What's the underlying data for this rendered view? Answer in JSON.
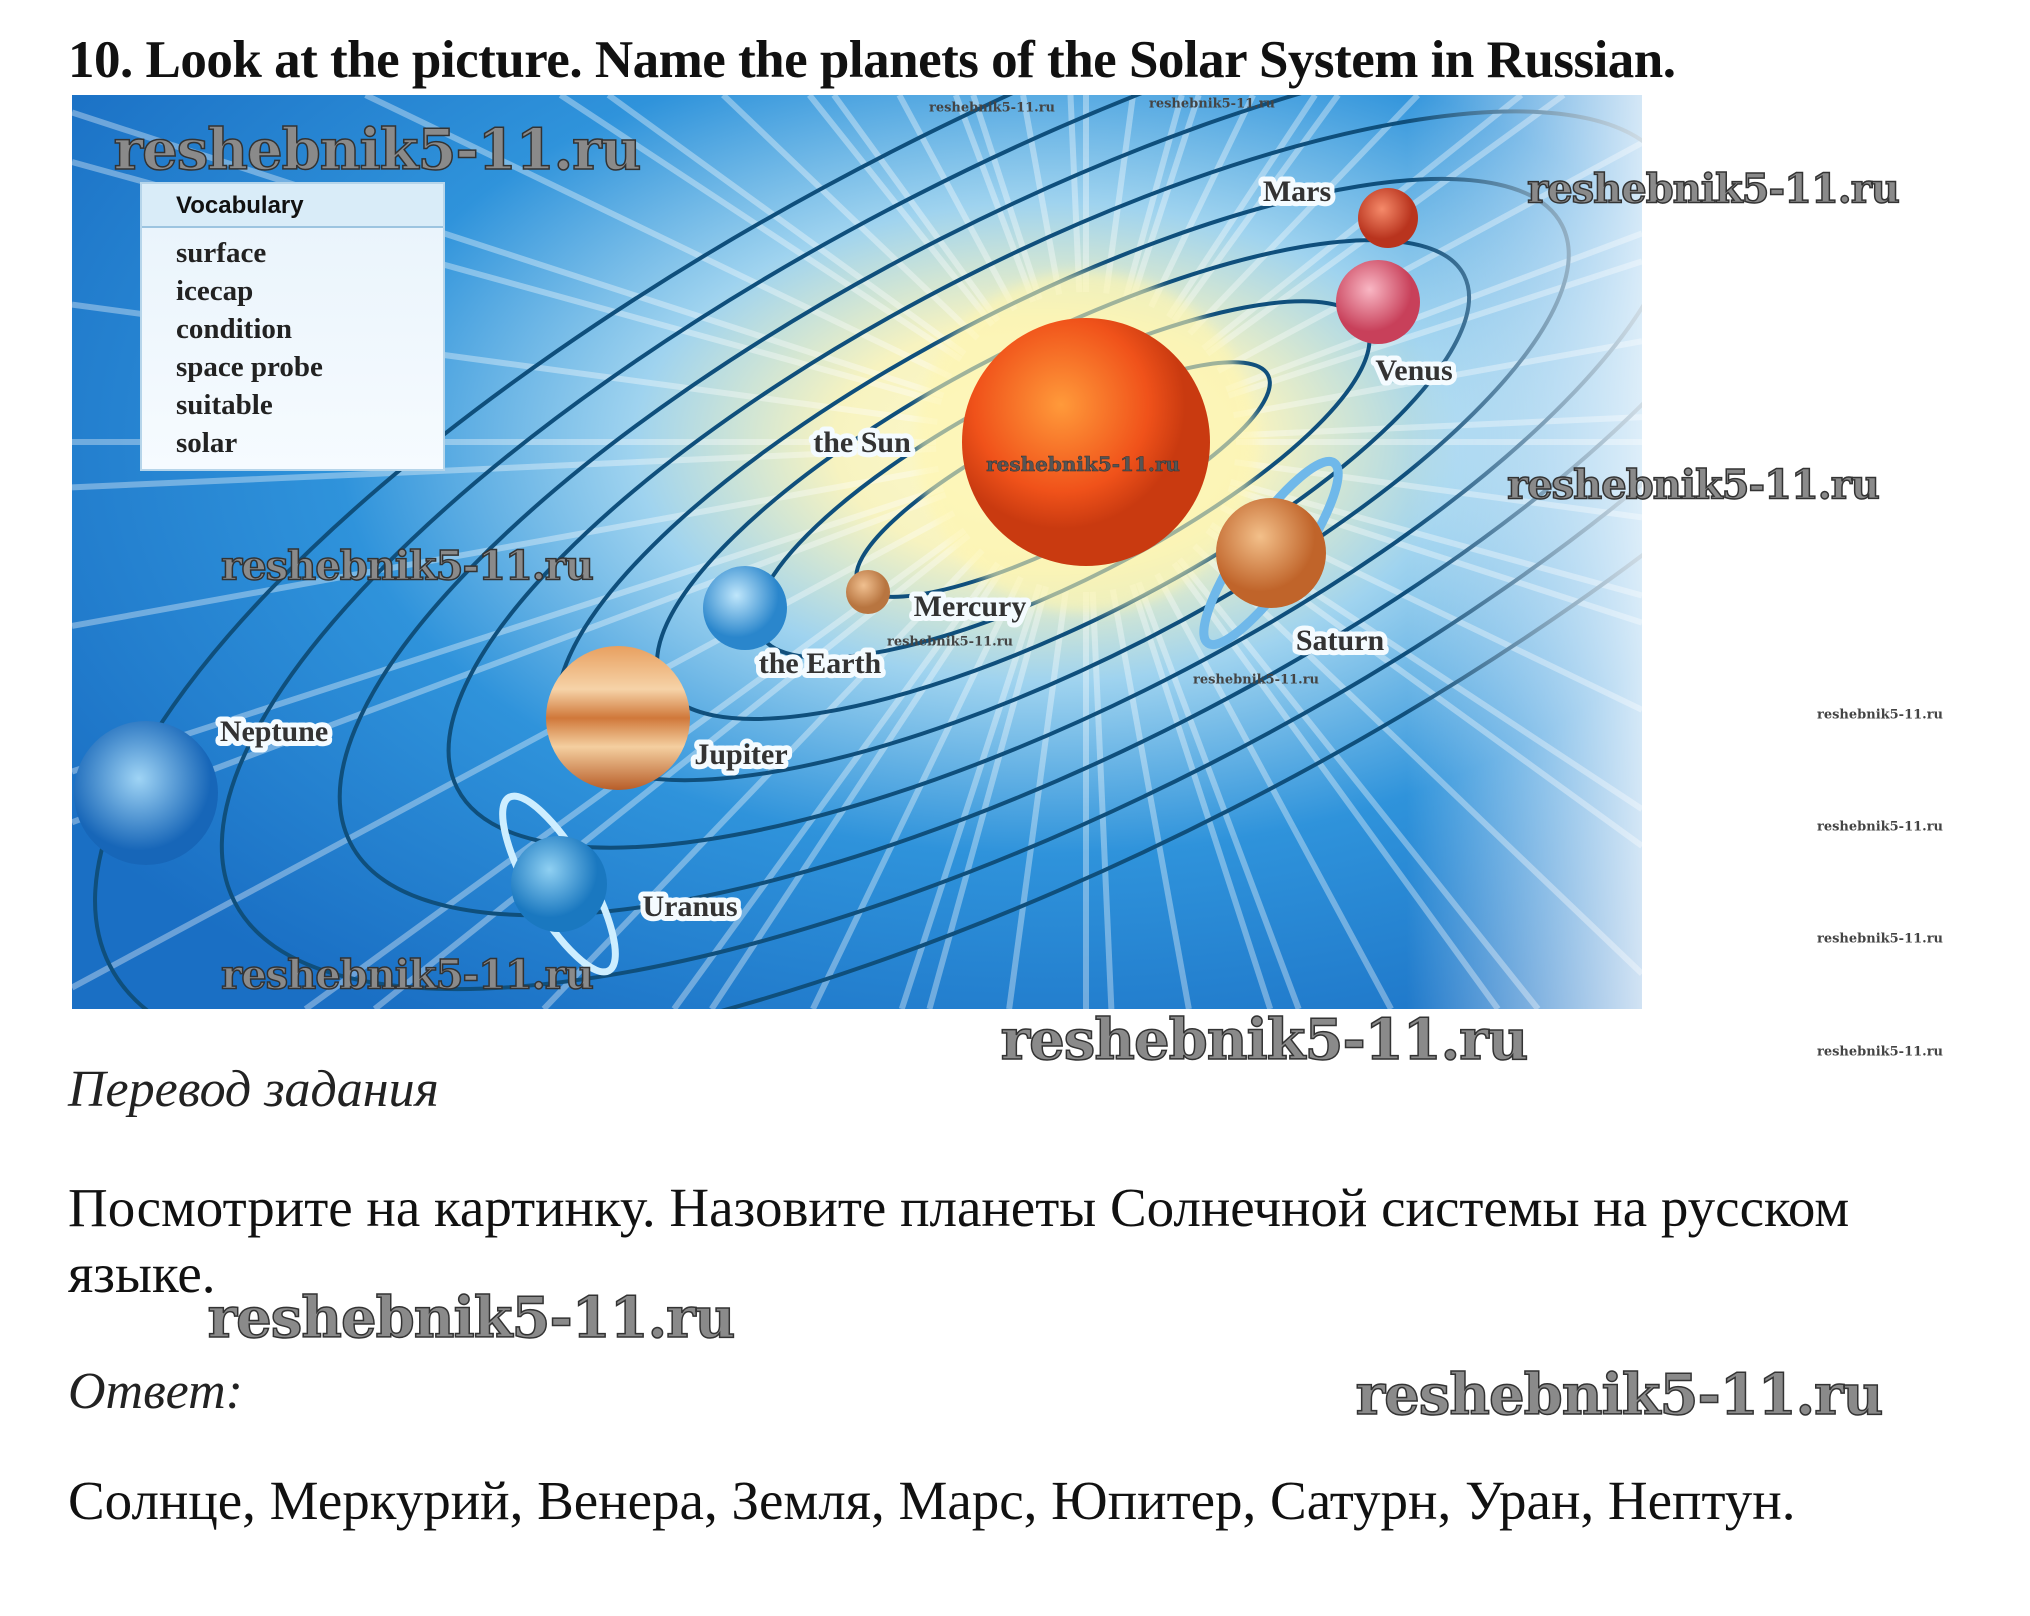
{
  "title": "10. Look at the picture. Name the planets of the Solar System in Russian.",
  "vocabulary": {
    "heading": "Vocabulary",
    "items": [
      "surface",
      "icecap",
      "condition",
      "space probe",
      "suitable",
      "solar"
    ]
  },
  "planet_labels": {
    "mars": "Mars",
    "venus": "Venus",
    "sun": "the Sun",
    "mercury": "Mercury",
    "saturn": "Saturn",
    "earth": "the Earth",
    "neptune": "Neptune",
    "jupiter": "Jupiter",
    "uranus": "Uranus"
  },
  "watermark": "reshebnik5-11.ru",
  "translation_heading": "Перевод задания",
  "translation_text": "Посмотрите на картинку. Назовите планеты Солнечной системы на русском языке.",
  "answer_heading": "Ответ:",
  "answer_text": "Солнце, Меркурий, Венера, Земля, Марс, Юпитер, Сатурн, Уран, Нептун.",
  "colors": {
    "sky": "#1f7fd0",
    "sun": "#f0521a",
    "glow": "#fff6b0"
  }
}
